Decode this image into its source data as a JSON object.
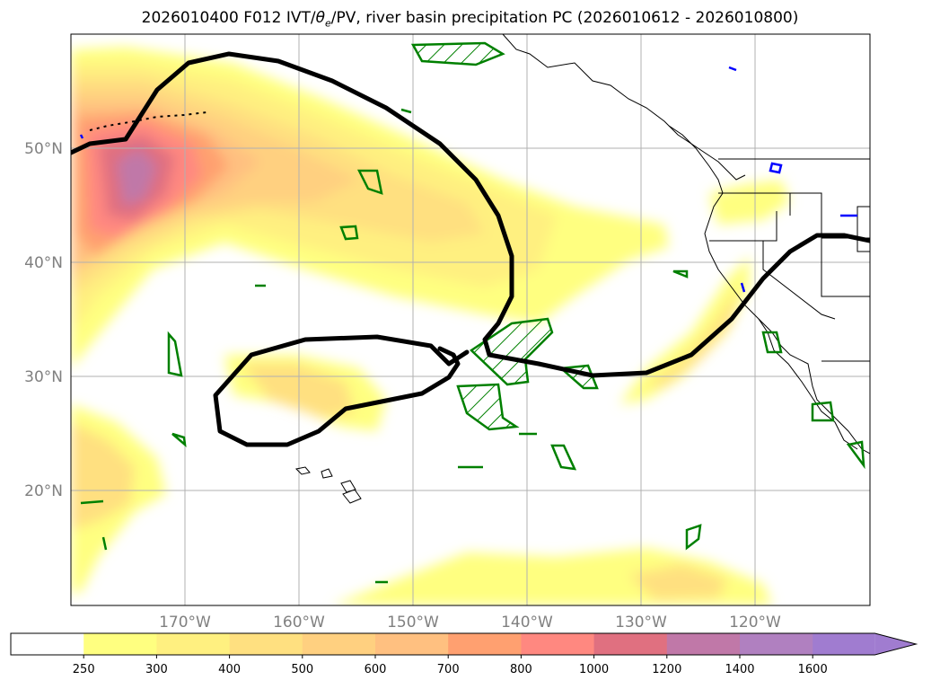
{
  "title": {
    "run": "2026010400 F012 IVT/",
    "theta": "θ",
    "theta_sub": "e",
    "rest": "/PV, river basin precipitation PC (2026010612 - 2026010800)"
  },
  "axes": {
    "lon_labels": [
      "170°W",
      "160°W",
      "150°W",
      "140°W",
      "130°W",
      "120°W"
    ],
    "lat_labels": [
      "50°N",
      "40°N",
      "30°N",
      "20°N"
    ]
  },
  "colorbar": {
    "ticks": [
      "250",
      "300",
      "400",
      "500",
      "600",
      "700",
      "800",
      "1000",
      "1200",
      "1400",
      "1600"
    ],
    "colors": [
      "#ffffff",
      "#ffff80",
      "#fff080",
      "#ffe080",
      "#ffd080",
      "#ffc080",
      "#ffa070",
      "#ff8880",
      "#e07080",
      "#c078a8",
      "#b080c0",
      "#a07cd0"
    ]
  },
  "colors": {
    "pv_contour": "#000000",
    "precip_positive": "#008000",
    "precip_negative": "#0000ff",
    "coast": "#000000",
    "grid": "#b0b0b0"
  }
}
